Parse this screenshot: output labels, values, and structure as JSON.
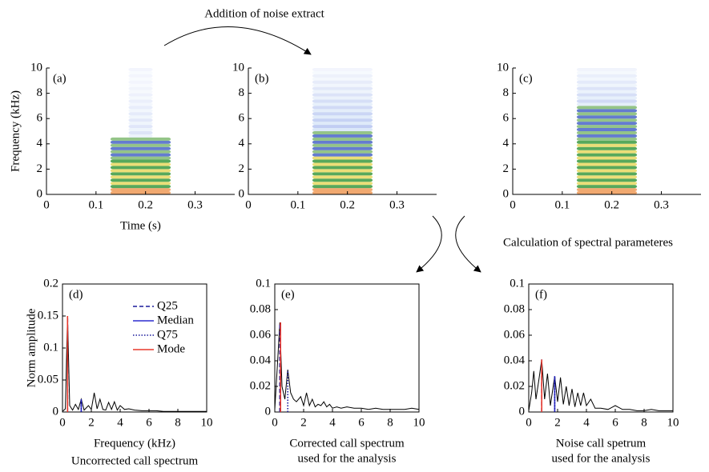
{
  "annotations": [
    "Addition of noise extract",
    "Calculation of spectral parameteres"
  ],
  "chart_data": [
    {
      "type": "spectrogram",
      "panel_label": "(a)",
      "ylabel": "Frequency (kHz)",
      "xlabel": "Time (s)",
      "xlim": [
        0,
        0.38
      ],
      "xticks": [
        0,
        0.1,
        0.2,
        0.3
      ],
      "ylim": [
        0,
        10
      ],
      "yticks": [
        0,
        2,
        4,
        6,
        8,
        10
      ]
    },
    {
      "type": "spectrogram",
      "panel_label": "(b)",
      "xlim": [
        0,
        0.38
      ],
      "xticks": [
        0,
        0.1,
        0.2,
        0.3
      ],
      "ylim": [
        0,
        10
      ],
      "yticks": [
        0,
        2,
        4,
        6,
        8,
        10
      ]
    },
    {
      "type": "spectrogram",
      "panel_label": "(c)",
      "xlim": [
        0,
        0.38
      ],
      "xticks": [
        0,
        0.1,
        0.2,
        0.3
      ],
      "ylim": [
        0,
        10
      ],
      "yticks": [
        0,
        2,
        4,
        6,
        8,
        10
      ]
    },
    {
      "type": "line",
      "panel_label": "(d)",
      "ylabel": "Norm amplitude",
      "xlabel": "Frequency (kHz)",
      "subtitle": [
        "Uncorrected call spectrum"
      ],
      "legend": true,
      "color": "#000000",
      "xlim": [
        0,
        10
      ],
      "xticks": [
        0,
        2,
        4,
        6,
        8,
        10
      ],
      "ylim": [
        0,
        0.2
      ],
      "yticks": [
        0,
        0.05,
        0.1,
        0.15,
        0.2
      ],
      "x": [
        0,
        0.2,
        0.35,
        0.5,
        0.7,
        0.9,
        1.1,
        1.3,
        1.5,
        1.8,
        2.0,
        2.2,
        2.4,
        2.6,
        2.8,
        3.0,
        3.2,
        3.4,
        3.6,
        3.8,
        4.0,
        4.3,
        4.6,
        5,
        5.5,
        6,
        6.5,
        7,
        7.5,
        8,
        8.5,
        9,
        9.5,
        10
      ],
      "values": [
        0.001,
        0.005,
        0.15,
        0.01,
        0.003,
        0.012,
        0.004,
        0.02,
        0.003,
        0.01,
        0.004,
        0.03,
        0.005,
        0.02,
        0.004,
        0.003,
        0.015,
        0.004,
        0.016,
        0.003,
        0.01,
        0.004,
        0.005,
        0.003,
        0.002,
        0.002,
        0.002,
        0.001,
        0.001,
        0.001,
        0.001,
        0.001,
        0.001,
        0.001
      ],
      "markers": [
        {
          "name": "Q25",
          "color": "#1a1a9c",
          "style": "dashed",
          "x": 0.35,
          "height": 0.15
        },
        {
          "name": "Median",
          "color": "#2b2bd0",
          "style": "solid",
          "x": 1.3,
          "height": 0.02
        },
        {
          "name": "Q75",
          "color": "#1a1a9c",
          "style": "dotted",
          "x": 1.3,
          "height": 0.02
        },
        {
          "name": "Mode",
          "color": "#e8382c",
          "style": "solid",
          "x": 0.35,
          "height": 0.15
        }
      ]
    },
    {
      "type": "line",
      "panel_label": "(e)",
      "subtitle": [
        "Corrected call spectrum",
        "used for the analysis"
      ],
      "color": "#000000",
      "xlim": [
        0,
        10
      ],
      "xticks": [
        0,
        2,
        4,
        6,
        8,
        10
      ],
      "ylim": [
        0,
        0.1
      ],
      "yticks": [
        0,
        0.02,
        0.04,
        0.06,
        0.08,
        0.1
      ],
      "x": [
        0,
        0.2,
        0.35,
        0.5,
        0.7,
        0.9,
        1.1,
        1.3,
        1.5,
        1.8,
        2.0,
        2.2,
        2.4,
        2.6,
        2.8,
        3.0,
        3.2,
        3.4,
        3.6,
        3.8,
        4.0,
        4.3,
        4.6,
        5,
        5.5,
        6,
        6.5,
        7,
        7.5,
        8,
        8.5,
        9,
        9.5,
        10
      ],
      "values": [
        0.002,
        0.04,
        0.07,
        0.02,
        0.01,
        0.033,
        0.015,
        0.01,
        0.008,
        0.012,
        0.005,
        0.015,
        0.005,
        0.01,
        0.004,
        0.006,
        0.005,
        0.008,
        0.004,
        0.006,
        0.003,
        0.004,
        0.003,
        0.004,
        0.003,
        0.003,
        0.002,
        0.003,
        0.002,
        0.002,
        0.002,
        0.002,
        0.003,
        0.002
      ],
      "markers": [
        {
          "x": 0.35,
          "height": 0.07
        },
        {
          "x": 0.4,
          "height": 0.07
        },
        {
          "x": 0.9,
          "height": 0.033
        },
        {
          "x": 0.4,
          "height": 0.07
        }
      ]
    },
    {
      "type": "line",
      "panel_label": "(f)",
      "subtitle": [
        "Noise call spetrum",
        "used for the analysis"
      ],
      "color": "#000000",
      "xlim": [
        0,
        10
      ],
      "xticks": [
        0,
        2,
        4,
        6,
        8,
        10
      ],
      "ylim": [
        0,
        0.1
      ],
      "yticks": [
        0,
        0.02,
        0.04,
        0.06,
        0.08,
        0.1
      ],
      "x": [
        0,
        0.2,
        0.35,
        0.5,
        0.7,
        0.9,
        1.1,
        1.3,
        1.5,
        1.8,
        2.0,
        2.2,
        2.4,
        2.6,
        2.8,
        3.0,
        3.2,
        3.4,
        3.6,
        3.8,
        4.0,
        4.3,
        4.6,
        5,
        5.5,
        6,
        6.5,
        7,
        7.5,
        8,
        8.5,
        9,
        9.5,
        10
      ],
      "values": [
        0.001,
        0.015,
        0.032,
        0.01,
        0.025,
        0.041,
        0.01,
        0.03,
        0.005,
        0.028,
        0.008,
        0.027,
        0.006,
        0.02,
        0.005,
        0.018,
        0.004,
        0.015,
        0.005,
        0.015,
        0.005,
        0.01,
        0.003,
        0.003,
        0.002,
        0.005,
        0.002,
        0.002,
        0.001,
        0.001,
        0.002,
        0.001,
        0.001,
        0.001
      ],
      "markers": [
        {
          "x": 0.9,
          "height": 0.041
        },
        {
          "x": 1.8,
          "height": 0.028
        },
        {
          "x": 1.8,
          "height": 0.028
        },
        {
          "x": 0.9,
          "height": 0.041
        }
      ]
    }
  ]
}
